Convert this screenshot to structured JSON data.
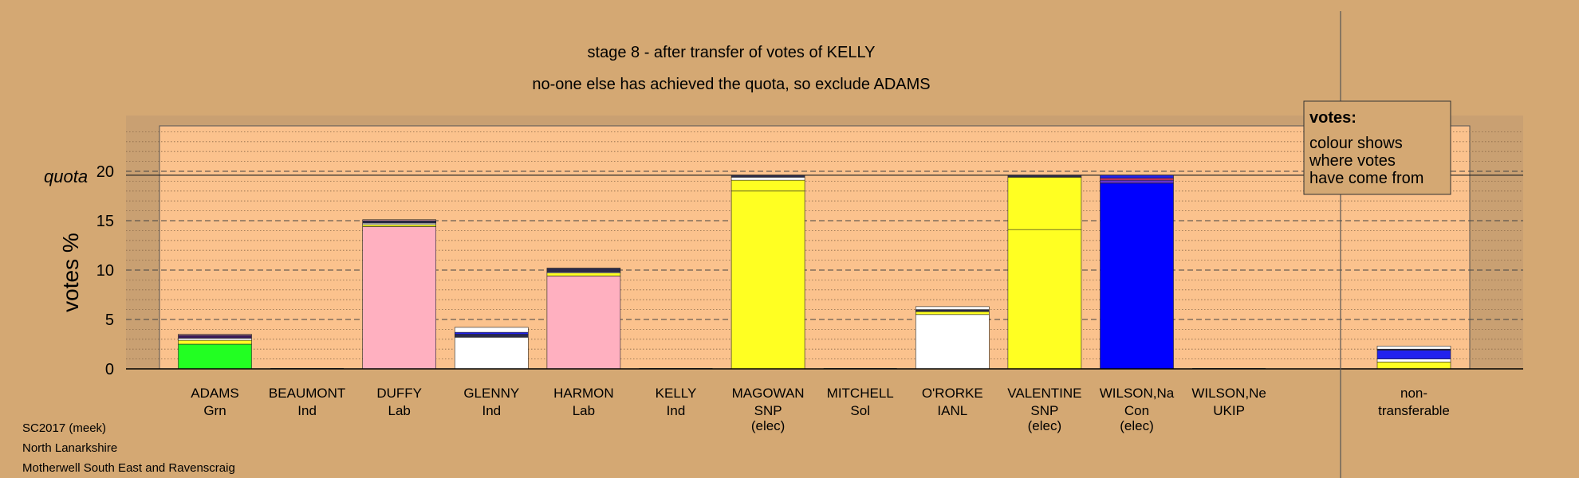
{
  "chart_data": {
    "type": "bar",
    "title": "stage 8 - after transfer of votes of KELLY",
    "subtitle": "no-one else has achieved the quota, so exclude ADAMS",
    "ylabel": "votes %",
    "quota_label": "quota",
    "quota": 19.6,
    "ylim": [
      0,
      24.5
    ],
    "yticks": [
      0,
      5,
      10,
      15,
      20
    ],
    "grid": true,
    "legend": {
      "placement": "top-right",
      "heading": "votes:",
      "lines": [
        "colour shows",
        "where votes",
        "have come from"
      ]
    },
    "candidates": [
      {
        "name": "ADAMS",
        "party": "Grn",
        "status": "",
        "segments": [
          {
            "value": 2.5,
            "color": "#22ff22"
          },
          {
            "value": 0.4,
            "color": "#ffff22"
          },
          {
            "value": 0.2,
            "color": "#ffffff"
          },
          {
            "value": 0.3,
            "color": "#3a1a5a"
          },
          {
            "value": 0.1,
            "color": "#ffb0c0"
          }
        ]
      },
      {
        "name": "BEAUMONT",
        "party": "Ind",
        "status": "",
        "segments": []
      },
      {
        "name": "DUFFY",
        "party": "Lab",
        "status": "",
        "segments": [
          {
            "value": 14.4,
            "color": "#ffb0c0"
          },
          {
            "value": 0.2,
            "color": "#ffff22"
          },
          {
            "value": 0.15,
            "color": "#ffffff"
          },
          {
            "value": 0.25,
            "color": "#2a2a4a"
          },
          {
            "value": 0.1,
            "color": "#ffb0c0"
          }
        ]
      },
      {
        "name": "GLENNY",
        "party": "Ind",
        "status": "",
        "segments": [
          {
            "value": 3.2,
            "color": "#ffffff"
          },
          {
            "value": 0.3,
            "color": "#2a2a4a"
          },
          {
            "value": 0.2,
            "color": "#2222ee"
          },
          {
            "value": 0.5,
            "color": "#ffffff"
          }
        ]
      },
      {
        "name": "HARMON",
        "party": "Lab",
        "status": "",
        "segments": [
          {
            "value": 9.4,
            "color": "#ffb0c0"
          },
          {
            "value": 0.3,
            "color": "#ffff22"
          },
          {
            "value": 0.1,
            "color": "#ffffff"
          },
          {
            "value": 0.4,
            "color": "#2a2a4a"
          }
        ]
      },
      {
        "name": "KELLY",
        "party": "Ind",
        "status": "",
        "segments": []
      },
      {
        "name": "MAGOWAN",
        "party": "SNP",
        "status": "(elec)",
        "segments": [
          {
            "value": 18.0,
            "color": "#ffff22"
          },
          {
            "value": 1.1,
            "color": "#ffff22"
          },
          {
            "value": 0.3,
            "color": "#ffffff"
          },
          {
            "value": 0.2,
            "color": "#2a2a4a"
          }
        ]
      },
      {
        "name": "MITCHELL",
        "party": "Sol",
        "status": "",
        "segments": []
      },
      {
        "name": "O'RORKE",
        "party": "IANL",
        "status": "",
        "segments": [
          {
            "value": 5.5,
            "color": "#ffffff"
          },
          {
            "value": 0.3,
            "color": "#ffff22"
          },
          {
            "value": 0.2,
            "color": "#2a2a4a"
          },
          {
            "value": 0.3,
            "color": "#ffffff"
          }
        ]
      },
      {
        "name": "VALENTINE",
        "party": "SNP",
        "status": "(elec)",
        "segments": [
          {
            "value": 14.1,
            "color": "#ffff22"
          },
          {
            "value": 5.3,
            "color": "#ffff22"
          },
          {
            "value": 0.2,
            "color": "#2a2a4a"
          }
        ]
      },
      {
        "name": "WILSON,Na",
        "party": "Con",
        "status": "(elec)",
        "segments": [
          {
            "value": 18.8,
            "color": "#0000ff"
          },
          {
            "value": 0.3,
            "color": "#6633cc"
          },
          {
            "value": 0.2,
            "color": "#cc3366"
          },
          {
            "value": 0.3,
            "color": "#2222ee"
          }
        ]
      },
      {
        "name": "WILSON,Ne",
        "party": "UKIP",
        "status": "",
        "segments": []
      }
    ],
    "non_transferable": {
      "label_line1": "non-",
      "label_line2": "transferable",
      "segments": [
        {
          "value": 0.7,
          "color": "#ffff22"
        },
        {
          "value": 0.3,
          "color": "#ffffff"
        },
        {
          "value": 0.9,
          "color": "#2222ee"
        },
        {
          "value": 0.1,
          "color": "#2a2a4a"
        },
        {
          "value": 0.3,
          "color": "#ffffff"
        }
      ]
    }
  },
  "footer": {
    "line1": "SC2017 (meek)",
    "line2": "North Lanarkshire",
    "line3": "Motherwell South East and Ravenscraig"
  }
}
